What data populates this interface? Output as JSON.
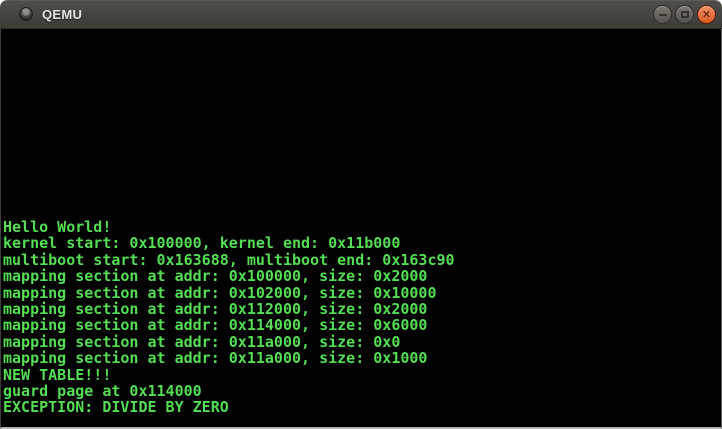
{
  "window": {
    "title": "QEMU",
    "controls": {
      "minimize_icon": "minus-shape",
      "maximize_icon": "square-outline-shape",
      "close_glyph": "✕"
    }
  },
  "terminal": {
    "lines": [
      "Hello World!",
      "kernel start: 0x100000, kernel end: 0x11b000",
      "multiboot start: 0x163688, multiboot end: 0x163c90",
      "mapping section at addr: 0x100000, size: 0x2000",
      "mapping section at addr: 0x102000, size: 0x10000",
      "mapping section at addr: 0x112000, size: 0x2000",
      "mapping section at addr: 0x114000, size: 0x6000",
      "mapping section at addr: 0x11a000, size: 0x0",
      "mapping section at addr: 0x11a000, size: 0x1000",
      "NEW TABLE!!!",
      "guard page at 0x114000",
      "EXCEPTION: DIVIDE BY ZERO"
    ]
  },
  "colors": {
    "titlebar_top": "#504f4a",
    "titlebar_bottom": "#3c3b37",
    "title_text": "#e6e3df",
    "button_gray": "#6a675f",
    "close_button_orange": "#dd5c22",
    "terminal_background": "#000000",
    "terminal_green": "#55dd55",
    "bottom_border_gray": "#b4b4b4"
  }
}
